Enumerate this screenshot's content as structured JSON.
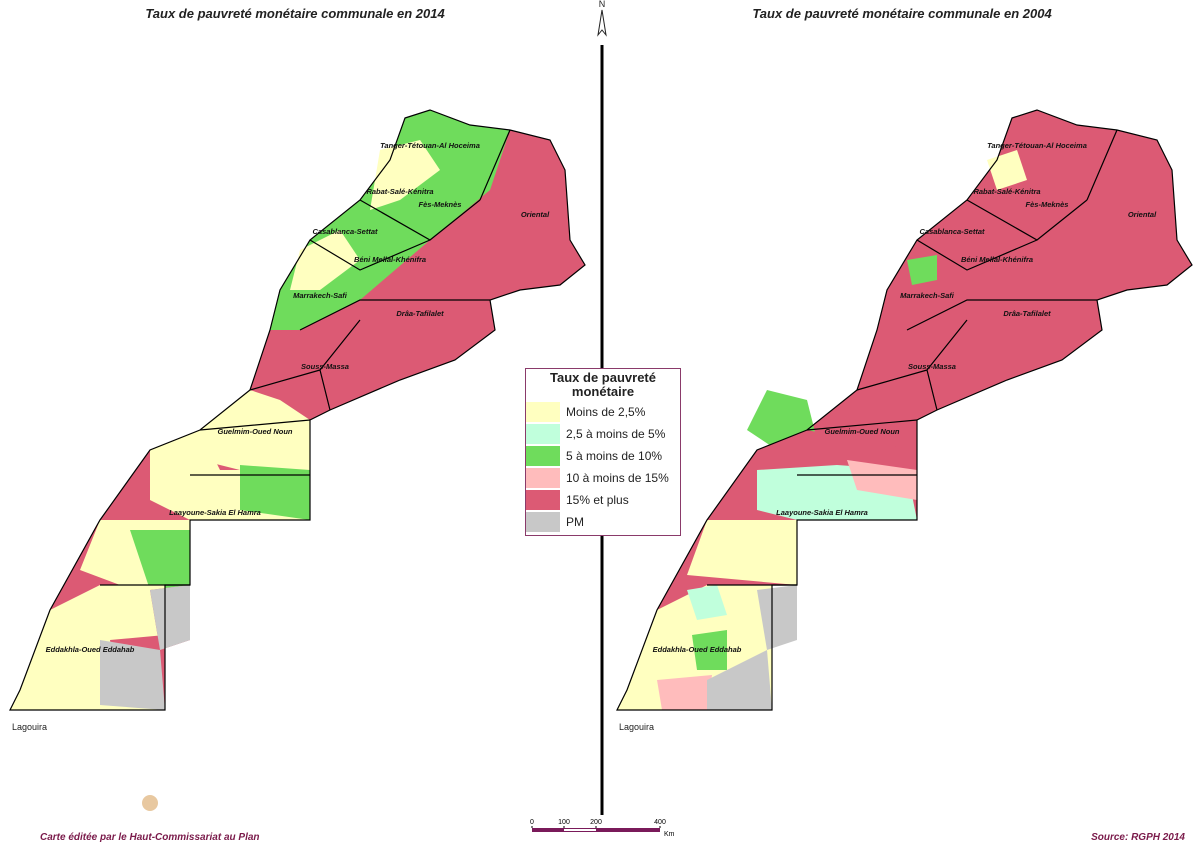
{
  "maps": [
    {
      "title": "Taux de pauvreté monétaire communale en 2014",
      "place": "Lagouira"
    },
    {
      "title": "Taux de pauvreté monétaire communale en 2004",
      "place": "Lagouira"
    }
  ],
  "regions": [
    "Tanger-Tétouan-Al Hoceima",
    "Rabat-Salé-Kénitra",
    "Fès-Meknès",
    "Oriental",
    "Casablanca-Settat",
    "Béni Mellal-Khénifra",
    "Marrakech-Safi",
    "Drâa-Tafilalet",
    "Souss-Massa",
    "Guelmim-Oued Noun",
    "Laayoune-Sakia El Hamra",
    "Eddakhla-Oued Eddahab"
  ],
  "north": "N",
  "legend": {
    "title": "Taux de pauvreté monétaire",
    "items": [
      {
        "label": "Moins de 2,5%",
        "color": "#ffffc0"
      },
      {
        "label": "2,5 à moins de 5%",
        "color": "#c0ffdc"
      },
      {
        "label": "5 à moins de 10%",
        "color": "#6fdc5c"
      },
      {
        "label": "10 à moins de 15%",
        "color": "#ffbcbc"
      },
      {
        "label": "15% et plus",
        "color": "#dc5a74"
      },
      {
        "label": "PM",
        "color": "#c8c8c8"
      }
    ]
  },
  "scale": {
    "ticks": [
      0,
      100,
      200,
      400
    ],
    "unit": "Km"
  },
  "credit": "Carte éditée par le Haut-Commissariat au Plan",
  "source": "Source: RGPH 2014"
}
